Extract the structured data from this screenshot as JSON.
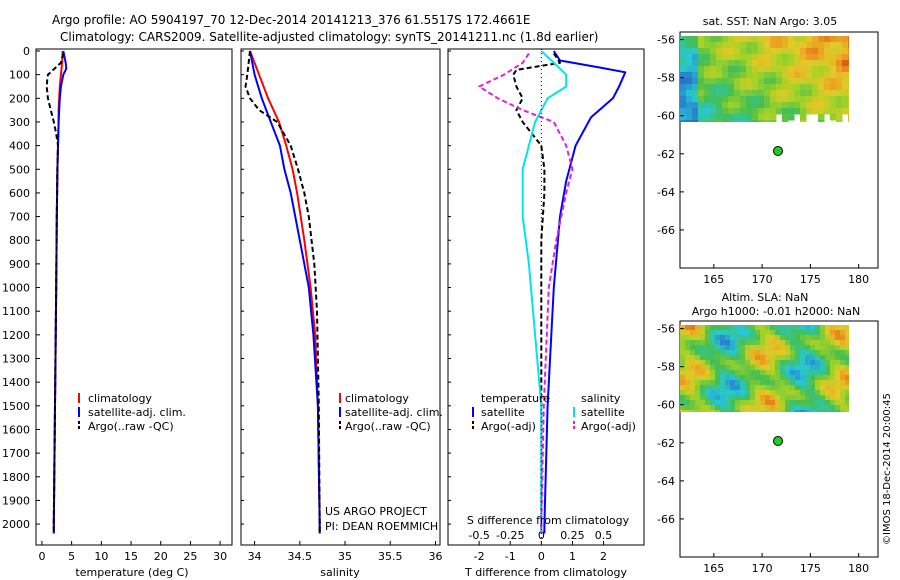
{
  "header": {
    "line1": "Argo profile: AO 5904197_70 12-Dec-2014 20141213_376 61.5517S 172.4661E",
    "line2": "Climatology: CARS2009. Satellite-adjusted climatology: synTS_20141211.nc (1.8d earlier)"
  },
  "colors": {
    "climatology": "#ff0000",
    "satellite": "#0000ff",
    "argo": "#000000",
    "satellite_s": "#00e5e5",
    "argo_s": "#e020e0",
    "float_marker": "#22cc22"
  },
  "chart_data": [
    {
      "id": "temperature",
      "type": "line",
      "xlabel": "temperature (deg C)",
      "ylabel": "",
      "xlim": [
        -1,
        32
      ],
      "xticks": [
        "0",
        "5",
        "10",
        "15",
        "20",
        "25",
        "30"
      ],
      "ylim": [
        0,
        2080
      ],
      "yticks": [
        "0",
        "100",
        "200",
        "300",
        "400",
        "500",
        "600",
        "700",
        "800",
        "900",
        "1000",
        "1100",
        "1200",
        "1300",
        "1400",
        "1500",
        "1600",
        "1700",
        "1800",
        "1900",
        "2000"
      ],
      "legend": [
        "climatology",
        "satellite-adj. clim.",
        "Argo(..raw -QC)"
      ],
      "series": [
        {
          "name": "climatology",
          "y": [
            0,
            50,
            100,
            150,
            200,
            250,
            300,
            400,
            500,
            700,
            1000,
            1500,
            2000,
            2040
          ],
          "x": [
            3.5,
            3.4,
            3.2,
            3.0,
            2.9,
            2.8,
            2.8,
            2.7,
            2.6,
            2.5,
            2.4,
            2.2,
            2.0,
            2.0
          ]
        },
        {
          "name": "satellite-adj. clim.",
          "y": [
            0,
            25,
            50,
            75,
            100,
            150,
            200,
            300,
            400,
            500,
            700,
            1000,
            1500,
            2000,
            2040
          ],
          "x": [
            3.6,
            3.8,
            4.0,
            4.1,
            3.6,
            3.2,
            3.0,
            2.8,
            2.7,
            2.6,
            2.5,
            2.4,
            2.2,
            2.0,
            2.0
          ]
        },
        {
          "name": "Argo(..raw -QC)",
          "y": [
            10,
            50,
            100,
            120,
            150,
            200,
            250,
            300,
            350,
            400,
            500,
            700,
            1000,
            1500,
            2000,
            2040
          ],
          "x": [
            3.6,
            3.2,
            1.0,
            0.9,
            0.8,
            1.0,
            1.5,
            2.0,
            2.4,
            2.7,
            2.6,
            2.5,
            2.4,
            2.2,
            2.0,
            2.0
          ]
        }
      ]
    },
    {
      "id": "salinity",
      "type": "line",
      "xlabel": "salinity",
      "xlim": [
        33.85,
        36.05
      ],
      "xticks": [
        "34",
        "34.5",
        "35",
        "35.5",
        "36"
      ],
      "ylim": [
        0,
        2080
      ],
      "legend": [
        "climatology",
        "satellite-adj. clim.",
        "Argo(..raw -QC)"
      ],
      "annotations": [
        "US ARGO PROJECT",
        "PI: DEAN ROEMMICH"
      ],
      "series": [
        {
          "name": "climatology",
          "y": [
            0,
            100,
            200,
            300,
            400,
            500,
            600,
            800,
            1000,
            1200,
            1500,
            2000,
            2040
          ],
          "x": [
            33.95,
            34.05,
            34.15,
            34.27,
            34.35,
            34.42,
            34.47,
            34.55,
            34.62,
            34.67,
            34.7,
            34.72,
            34.72
          ]
        },
        {
          "name": "satellite-adj. clim.",
          "y": [
            0,
            100,
            200,
            300,
            400,
            500,
            600,
            800,
            1000,
            1200,
            1500,
            2000,
            2040
          ],
          "x": [
            33.95,
            34.0,
            34.08,
            34.18,
            34.28,
            34.33,
            34.4,
            34.5,
            34.6,
            34.65,
            34.7,
            34.72,
            34.72
          ]
        },
        {
          "name": "Argo(..raw -QC)",
          "y": [
            0,
            100,
            150,
            200,
            250,
            300,
            400,
            500,
            600,
            700,
            900,
            1100,
            1300,
            1500,
            2000,
            2040
          ],
          "x": [
            33.95,
            33.92,
            33.9,
            33.95,
            34.05,
            34.25,
            34.4,
            34.48,
            34.55,
            34.6,
            34.66,
            34.69,
            34.7,
            34.71,
            34.72,
            34.72
          ]
        }
      ]
    },
    {
      "id": "difference",
      "type": "line",
      "xlabel": "T difference from climatology",
      "x2label": "S difference from climatology",
      "xlim": [
        -3.0,
        3.3
      ],
      "xticks": [
        "-2",
        "-1",
        "0",
        "1",
        "2"
      ],
      "x2ticks": [
        "-0.5",
        "-0.25",
        "0",
        "0.25",
        "0.5"
      ],
      "ylim": [
        0,
        2080
      ],
      "legend_headers": [
        "temperature",
        "salinity"
      ],
      "legend": [
        "satellite",
        "Argo(-adj)",
        "satellite",
        "Argo(-adj)"
      ],
      "series": [
        {
          "name": "satellite",
          "quantity": "temperature",
          "y": [
            0,
            40,
            70,
            90,
            150,
            200,
            280,
            400,
            550,
            700,
            1000,
            1500,
            2000,
            2040
          ],
          "x": [
            0.4,
            0.6,
            1.9,
            2.7,
            2.5,
            2.3,
            1.6,
            1.1,
            0.8,
            0.6,
            0.4,
            0.2,
            0.1,
            0.1
          ]
        },
        {
          "name": "Argo(-adj)",
          "quantity": "temperature",
          "y": [
            10,
            50,
            80,
            100,
            150,
            200,
            250,
            300,
            350,
            400,
            500,
            600,
            800,
            1000,
            1500,
            2000,
            2040
          ],
          "x": [
            0.4,
            0.6,
            -0.8,
            -0.9,
            -0.8,
            -0.6,
            -0.8,
            -0.6,
            -0.3,
            0.0,
            0.1,
            0.1,
            0.0,
            0.0,
            0.0,
            0.0,
            0.0
          ]
        },
        {
          "name": "satellite",
          "quantity": "salinity",
          "y": [
            0,
            50,
            100,
            150,
            200,
            300,
            400,
            500,
            700,
            900,
            1200,
            1500,
            2000,
            2040
          ],
          "x": [
            0.0,
            0.1,
            0.2,
            0.2,
            0.05,
            -0.05,
            -0.1,
            -0.15,
            -0.15,
            -0.1,
            -0.05,
            0.0,
            0.0,
            0.0
          ]
        },
        {
          "name": "Argo(-adj)",
          "quantity": "salinity",
          "y": [
            10,
            50,
            100,
            150,
            200,
            250,
            300,
            400,
            500,
            600,
            800,
            1000,
            1500,
            2000,
            2040
          ],
          "x": [
            -0.1,
            -0.15,
            -0.3,
            -0.5,
            -0.35,
            -0.15,
            0.1,
            0.2,
            0.25,
            0.2,
            0.12,
            0.06,
            0.02,
            0.0,
            0.0
          ]
        }
      ]
    },
    {
      "id": "sst_map",
      "type": "heatmap",
      "title": "sat. SST: NaN Argo: 3.05",
      "xticks": [
        "165",
        "170",
        "175",
        "180"
      ],
      "yticks": [
        "-56",
        "-58",
        "-60",
        "-62",
        "-64",
        "-66"
      ],
      "xlim": [
        161.5,
        182
      ],
      "ylim": [
        -68,
        -55.6
      ],
      "float_position": {
        "lon": 172.47,
        "lat": -61.55
      }
    },
    {
      "id": "sla_map",
      "type": "heatmap",
      "title": "Altim. SLA: NaN",
      "subtitle": "Argo h1000: -0.01 h2000: NaN",
      "xticks": [
        "165",
        "170",
        "175",
        "180"
      ],
      "yticks": [
        "-56",
        "-58",
        "-60",
        "-62",
        "-64",
        "-66"
      ],
      "xlim": [
        161.5,
        182
      ],
      "ylim": [
        -68,
        -55.6
      ],
      "float_position": {
        "lon": 172.47,
        "lat": -61.55
      }
    }
  ],
  "footer": {
    "stamp": "©IMOS 18-Dec-2014 20:00:45"
  }
}
